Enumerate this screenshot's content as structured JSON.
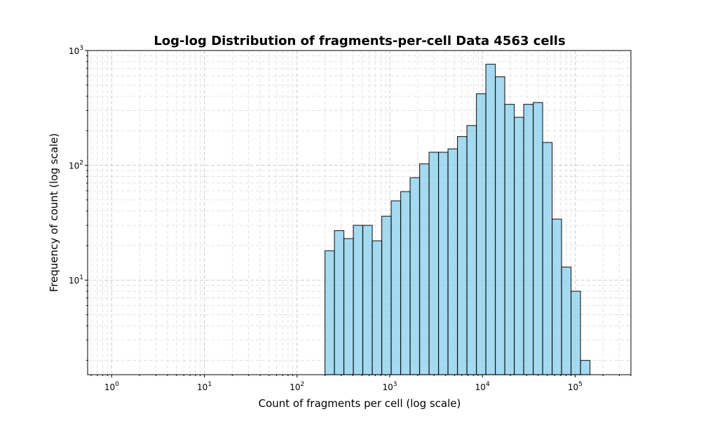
{
  "chart_data": {
    "type": "bar",
    "title": "Log-log Distribution of fragments-per-cell Data 4563 cells",
    "xlabel": "Count of fragments per cell (log scale)",
    "ylabel": "Frequency of count (log scale)",
    "xscale": "log",
    "yscale": "log",
    "xlim": [
      0.55,
      400000
    ],
    "ylim": [
      1.5,
      1000
    ],
    "x_ticks": [
      {
        "base": "10",
        "exp": "0",
        "value": 1
      },
      {
        "base": "10",
        "exp": "1",
        "value": 10
      },
      {
        "base": "10",
        "exp": "2",
        "value": 100
      },
      {
        "base": "10",
        "exp": "3",
        "value": 1000
      },
      {
        "base": "10",
        "exp": "4",
        "value": 10000
      },
      {
        "base": "10",
        "exp": "5",
        "value": 100000
      }
    ],
    "y_ticks": [
      {
        "base": "10",
        "exp": "1",
        "value": 10
      },
      {
        "base": "10",
        "exp": "2",
        "value": 100
      },
      {
        "base": "10",
        "exp": "3",
        "value": 1000
      }
    ],
    "grid": true,
    "bin_edges": [
      200,
      253,
      320,
      405,
      512,
      648,
      820,
      1037,
      1312,
      1660,
      2100,
      2657,
      3361,
      4252,
      5379,
      6805,
      8609,
      10891,
      13779,
      17432,
      22053,
      27899,
      35295,
      44652,
      56489,
      71465,
      90410,
      114379,
      144702,
      183064,
      231595
    ],
    "values": [
      18,
      27,
      23,
      30,
      30,
      22,
      36,
      49,
      59,
      78,
      103,
      130,
      130,
      139,
      178,
      222,
      420,
      760,
      590,
      340,
      262,
      340,
      352,
      158,
      34,
      13,
      8,
      2,
      0,
      0
    ]
  }
}
